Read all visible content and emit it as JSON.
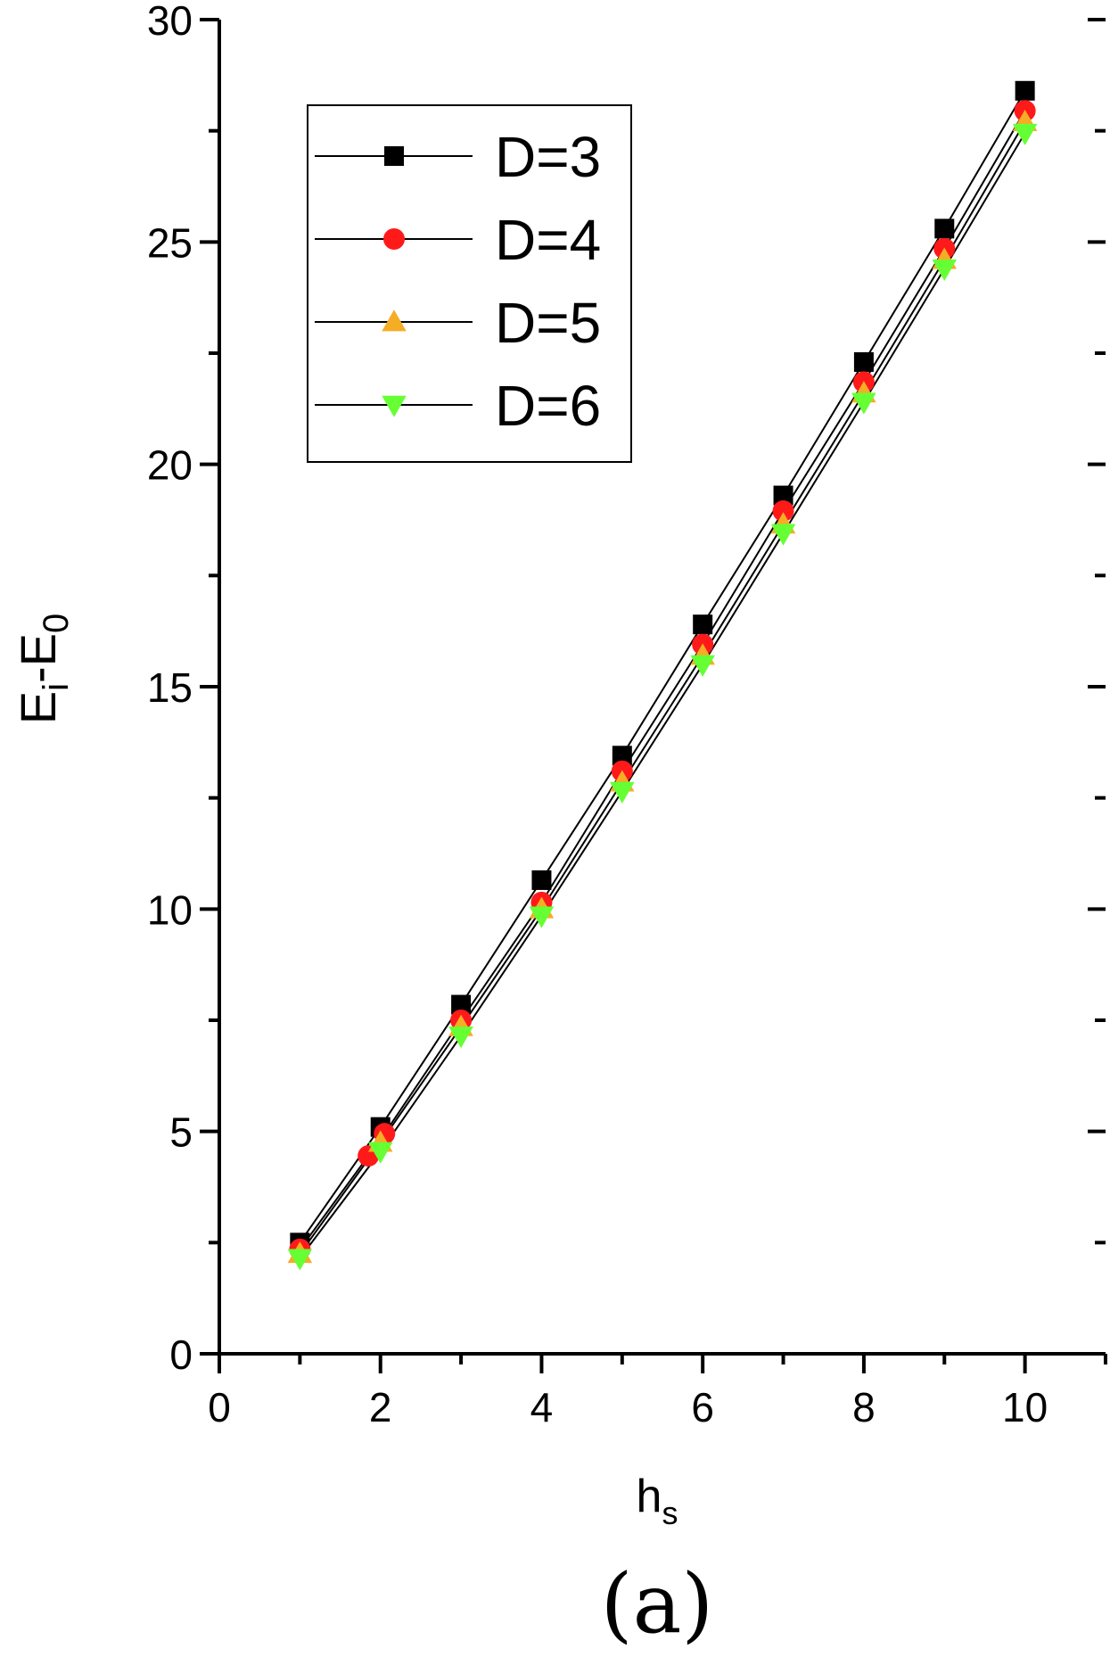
{
  "chart_data": {
    "type": "scatter",
    "title": "",
    "panel_label": "(a)",
    "xlabel": {
      "main": "h",
      "sub": "s"
    },
    "ylabel": {
      "parts": [
        {
          "text": "E"
        },
        {
          "text": "i",
          "sub": true
        },
        {
          "text": "-E"
        },
        {
          "text": "0",
          "sub": true
        }
      ]
    },
    "xlim": [
      0,
      11
    ],
    "ylim": [
      0,
      30
    ],
    "xticks": [
      0,
      2,
      4,
      6,
      8,
      10
    ],
    "xticks_minor": [
      1,
      3,
      5,
      7,
      9,
      11
    ],
    "yticks": [
      0,
      5,
      10,
      15,
      20,
      25,
      30
    ],
    "yticks_minor": [
      2.5,
      7.5,
      12.5,
      17.5,
      22.5,
      27.5
    ],
    "grid": false,
    "legend_position": "top-left",
    "series": [
      {
        "name": "D=3",
        "marker": "square",
        "color": "#000000",
        "x": [
          1,
          2,
          3,
          4,
          5,
          6,
          7,
          8,
          9,
          10
        ],
        "y": [
          2.5,
          5.1,
          7.85,
          10.65,
          13.45,
          16.4,
          19.3,
          22.3,
          25.3,
          28.4
        ]
      },
      {
        "name": "D=4",
        "marker": "circle",
        "color": "#ff1a1a",
        "x": [
          1,
          1.85,
          2.05,
          3,
          4,
          5,
          6,
          7,
          8,
          9,
          10
        ],
        "y": [
          2.35,
          4.45,
          4.95,
          7.5,
          10.15,
          13.1,
          15.95,
          18.95,
          21.85,
          24.85,
          27.95
        ]
      },
      {
        "name": "D=5",
        "marker": "triangle-up",
        "color": "#f5ad26",
        "x": [
          1,
          2,
          3,
          4,
          5,
          6,
          7,
          8,
          9,
          10
        ],
        "y": [
          2.25,
          4.75,
          7.35,
          10.0,
          12.85,
          15.7,
          18.65,
          21.6,
          24.6,
          27.7
        ]
      },
      {
        "name": "D=6",
        "marker": "triangle-down",
        "color": "#66ff33",
        "x": [
          1,
          2,
          3,
          4,
          5,
          6,
          7,
          8,
          9,
          10
        ],
        "y": [
          2.15,
          4.55,
          7.15,
          9.85,
          12.65,
          15.5,
          18.45,
          21.4,
          24.4,
          27.45
        ]
      }
    ]
  }
}
